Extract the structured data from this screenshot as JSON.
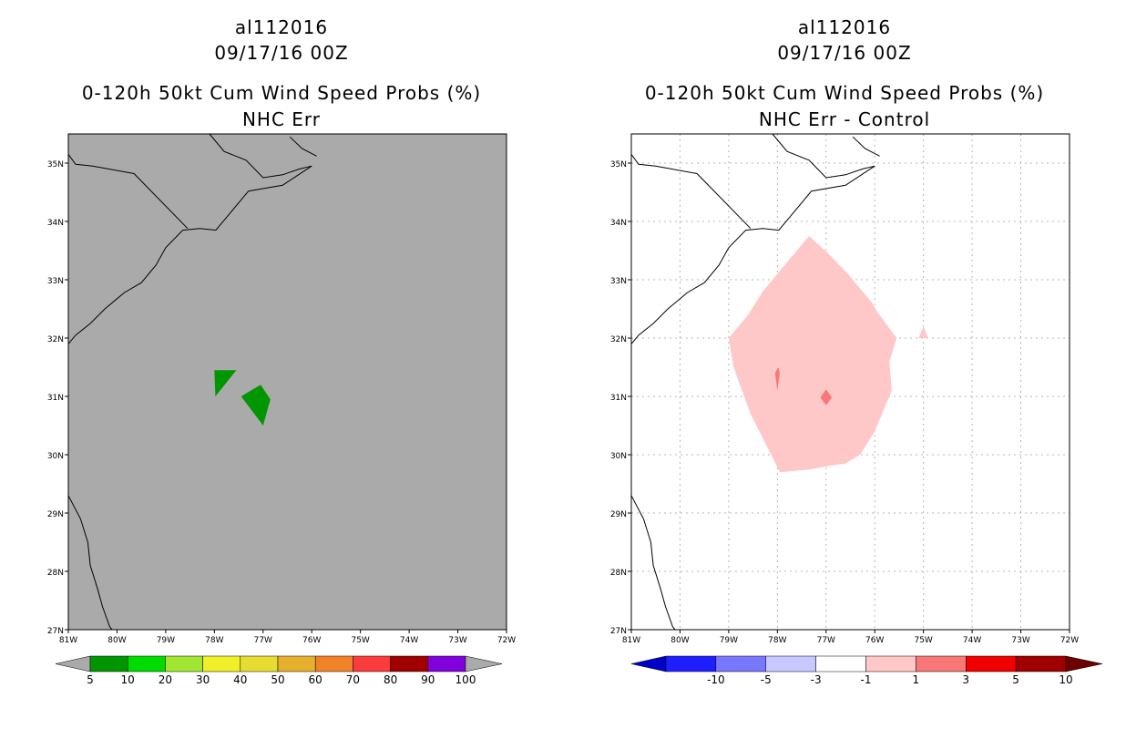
{
  "left_panel": {
    "storm_id": "al112016",
    "datetime": "09/17/16 00Z",
    "product": "0-120h 50kt Cum Wind Speed Probs (%)",
    "subtitle": "NHC Err",
    "background_color": "#aaaaaa",
    "feature_color": "#009600",
    "colorbar": {
      "labels": [
        "5",
        "10",
        "20",
        "30",
        "40",
        "50",
        "60",
        "70",
        "80",
        "90",
        "100"
      ],
      "colors": [
        "#009600",
        "#00dc00",
        "#a0e632",
        "#f0f028",
        "#e6dc32",
        "#e6af2d",
        "#f08228",
        "#fa3c3c",
        "#a00000",
        "#8200dc"
      ]
    }
  },
  "right_panel": {
    "storm_id": "al112016",
    "datetime": "09/17/16 00Z",
    "product": "0-120h 50kt Cum Wind Speed Probs (%)",
    "subtitle": "NHC Err - Control",
    "background_color": "#ffffff",
    "light_color": "#ffc8c8",
    "mid_color": "#f87878",
    "colorbar": {
      "labels": [
        "-10",
        "-5",
        "-3",
        "-1",
        "1",
        "3",
        "5",
        "10"
      ],
      "colors": [
        "#0000c8",
        "#1e1eff",
        "#7878ff",
        "#c8c8ff",
        "#ffffff",
        "#ffc8c8",
        "#f87878",
        "#f00000",
        "#a00000",
        "#6e0000"
      ]
    }
  },
  "axes": {
    "lon_labels": [
      "81W",
      "80W",
      "79W",
      "78W",
      "77W",
      "76W",
      "75W",
      "74W",
      "73W",
      "72W"
    ],
    "lat_labels": [
      "27N",
      "28N",
      "29N",
      "30N",
      "31N",
      "32N",
      "33N",
      "34N",
      "35N"
    ]
  }
}
